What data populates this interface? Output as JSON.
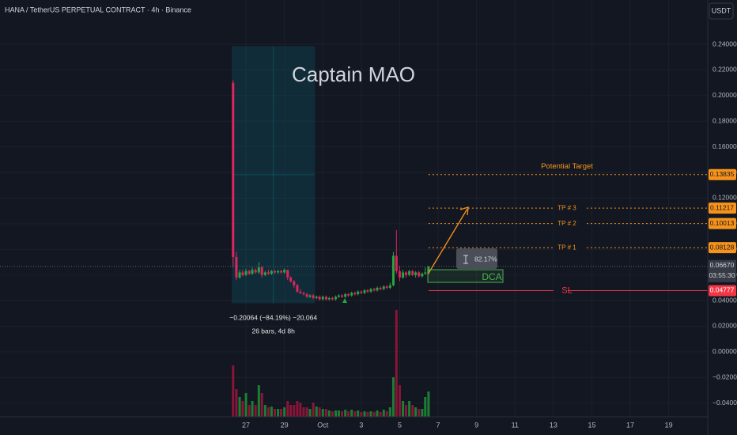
{
  "chart_data": {
    "type": "candlestick",
    "title": "HANA / TetherUS PERPETUAL CONTRACT · 4h · Binance",
    "currency": "USDT",
    "watermark": "Captain MAO",
    "up_color": "#26a641",
    "down_color": "#e0245e",
    "volume_up_color": "#1b7f33",
    "volume_down_color": "#8a1538",
    "xlim": [
      -12.8,
      24.03
    ],
    "xticks": [
      {
        "value": 0,
        "label": "27"
      },
      {
        "value": 2,
        "label": "29"
      },
      {
        "value": 4,
        "label": "Oct"
      },
      {
        "value": 6,
        "label": "3"
      },
      {
        "value": 8,
        "label": "5"
      },
      {
        "value": 10,
        "label": "7"
      },
      {
        "value": 12,
        "label": "9"
      },
      {
        "value": 14,
        "label": "11"
      },
      {
        "value": 16,
        "label": "13"
      },
      {
        "value": 18,
        "label": "15"
      },
      {
        "value": 20,
        "label": "17"
      },
      {
        "value": 22,
        "label": "19"
      }
    ],
    "ylim": [
      -0.0507,
      0.2746
    ],
    "yticks": [
      {
        "value": 0.24,
        "label": "0.24000"
      },
      {
        "value": 0.22,
        "label": "0.22000"
      },
      {
        "value": 0.2,
        "label": "0.20000"
      },
      {
        "value": 0.18,
        "label": "0.18000"
      },
      {
        "value": 0.16,
        "label": "0.16000"
      },
      {
        "value": 0.14,
        "label": "0.14000"
      },
      {
        "value": 0.12,
        "label": "0.12000"
      },
      {
        "value": 0.1,
        "label": "0.10000"
      },
      {
        "value": 0.08,
        "label": "0.08000"
      },
      {
        "value": 0.06,
        "label": "0.06000"
      },
      {
        "value": 0.04,
        "label": "0.04000"
      },
      {
        "value": 0.02,
        "label": "0.02000"
      },
      {
        "value": 0,
        "label": "0.00000"
      },
      {
        "value": -0.02,
        "label": "−0.02000"
      },
      {
        "value": -0.04,
        "label": "−0.04000"
      }
    ],
    "grid": true,
    "volume_lim": [
      0,
      14
    ],
    "x": [
      -0.67,
      -0.5,
      -0.33,
      -0.17,
      0,
      0.17,
      0.33,
      0.5,
      0.67,
      0.83,
      1,
      1.17,
      1.33,
      1.5,
      1.67,
      1.83,
      2,
      2.17,
      2.33,
      2.5,
      2.67,
      2.83,
      3,
      3.17,
      3.33,
      3.5,
      3.67,
      3.83,
      4,
      4.17,
      4.33,
      4.5,
      4.67,
      4.83,
      5,
      5.17,
      5.33,
      5.5,
      5.67,
      5.83,
      6,
      6.17,
      6.33,
      6.5,
      6.67,
      6.83,
      7,
      7.17,
      7.33,
      7.5,
      7.67,
      7.83,
      8,
      8.17,
      8.33,
      8.5,
      8.67,
      8.83,
      9,
      9.17,
      9.33,
      9.5
    ],
    "open": [
      0.21,
      0.074,
      0.058,
      0.062,
      0.06,
      0.063,
      0.061,
      0.064,
      0.062,
      0.066,
      0.06,
      0.062,
      0.061,
      0.063,
      0.062,
      0.063,
      0.062,
      0.064,
      0.058,
      0.055,
      0.052,
      0.047,
      0.046,
      0.045,
      0.043,
      0.044,
      0.042,
      0.043,
      0.041,
      0.043,
      0.041,
      0.042,
      0.041,
      0.043,
      0.044,
      0.043,
      0.045,
      0.044,
      0.046,
      0.045,
      0.047,
      0.046,
      0.048,
      0.047,
      0.049,
      0.048,
      0.05,
      0.049,
      0.051,
      0.05,
      0.052,
      0.075,
      0.063,
      0.058,
      0.062,
      0.06,
      0.063,
      0.06,
      0.062,
      0.059,
      0.061,
      0.062
    ],
    "high": [
      0.212,
      0.078,
      0.064,
      0.064,
      0.065,
      0.064,
      0.066,
      0.065,
      0.07,
      0.067,
      0.063,
      0.064,
      0.064,
      0.064,
      0.064,
      0.064,
      0.065,
      0.064,
      0.059,
      0.056,
      0.053,
      0.049,
      0.047,
      0.046,
      0.045,
      0.045,
      0.044,
      0.044,
      0.044,
      0.044,
      0.043,
      0.043,
      0.044,
      0.045,
      0.045,
      0.046,
      0.046,
      0.047,
      0.047,
      0.048,
      0.048,
      0.049,
      0.049,
      0.05,
      0.05,
      0.051,
      0.051,
      0.052,
      0.052,
      0.054,
      0.078,
      0.095,
      0.067,
      0.064,
      0.063,
      0.064,
      0.064,
      0.063,
      0.063,
      0.062,
      0.066,
      0.067
    ],
    "low": [
      0.066,
      0.056,
      0.057,
      0.059,
      0.059,
      0.06,
      0.06,
      0.061,
      0.061,
      0.058,
      0.059,
      0.06,
      0.06,
      0.061,
      0.061,
      0.061,
      0.061,
      0.056,
      0.054,
      0.05,
      0.046,
      0.045,
      0.044,
      0.042,
      0.042,
      0.041,
      0.041,
      0.04,
      0.04,
      0.04,
      0.04,
      0.04,
      0.04,
      0.042,
      0.042,
      0.042,
      0.043,
      0.043,
      0.044,
      0.044,
      0.045,
      0.045,
      0.046,
      0.046,
      0.047,
      0.047,
      0.048,
      0.048,
      0.049,
      0.049,
      0.051,
      0.061,
      0.055,
      0.057,
      0.058,
      0.059,
      0.059,
      0.058,
      0.058,
      0.058,
      0.06,
      0.061
    ],
    "close": [
      0.074,
      0.058,
      0.062,
      0.06,
      0.063,
      0.061,
      0.064,
      0.062,
      0.066,
      0.06,
      0.062,
      0.061,
      0.063,
      0.062,
      0.063,
      0.062,
      0.064,
      0.058,
      0.055,
      0.052,
      0.047,
      0.046,
      0.045,
      0.043,
      0.044,
      0.042,
      0.043,
      0.041,
      0.043,
      0.041,
      0.042,
      0.041,
      0.043,
      0.044,
      0.043,
      0.045,
      0.044,
      0.046,
      0.045,
      0.047,
      0.046,
      0.048,
      0.047,
      0.049,
      0.048,
      0.05,
      0.049,
      0.051,
      0.05,
      0.052,
      0.075,
      0.063,
      0.058,
      0.062,
      0.06,
      0.063,
      0.06,
      0.062,
      0.059,
      0.061,
      0.062,
      0.0667
    ],
    "volume": [
      6.5,
      3.5,
      2.5,
      2,
      3,
      1.5,
      2,
      1.5,
      4,
      3,
      1.5,
      1.2,
      1.3,
      1,
      1,
      1,
      1.2,
      2,
      1.5,
      1.5,
      2,
      1.8,
      1.2,
      1.2,
      1,
      1.8,
      1.3,
      1.2,
      1,
      1,
      0.8,
      0.7,
      0.8,
      0.8,
      0.7,
      0.9,
      0.7,
      0.9,
      0.7,
      0.8,
      0.6,
      0.7,
      0.6,
      0.7,
      0.6,
      0.8,
      0.6,
      0.9,
      0.7,
      1.2,
      5,
      13.5,
      4,
      2,
      1.5,
      2,
      1.5,
      1.2,
      1,
      1,
      2.5,
      3.2
    ],
    "levels": [
      {
        "name": "Potential Target",
        "price": 0.13835,
        "color": "#f7931a",
        "style": "dashed"
      },
      {
        "name": "TP # 3",
        "price": 0.11217,
        "color": "#f7931a",
        "style": "dashed"
      },
      {
        "name": "TP # 2",
        "price": 0.10013,
        "color": "#f7931a",
        "style": "dashed"
      },
      {
        "name": "TP # 1",
        "price": 0.08128,
        "color": "#f7931a",
        "style": "dashed"
      },
      {
        "name": "SL",
        "price": 0.04777,
        "color": "#f23645",
        "style": "solid"
      }
    ],
    "current_price": {
      "value": 0.0667,
      "label": "0.06670"
    },
    "countdown": "03:55:30",
    "measure": {
      "from_x": -0.74,
      "to_x": 3.59,
      "from_price": 0.23858,
      "to_price": 0.03794,
      "change_text": "−0.20064 (−84.19%) −20,064",
      "bars_text": "26 bars, 4d 8h"
    },
    "projection_label": "82.17%",
    "dca_label": "DCA"
  }
}
